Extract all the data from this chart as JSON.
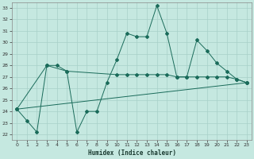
{
  "xlabel": "Humidex (Indice chaleur)",
  "bg_color": "#c5e8e0",
  "line_color": "#1a6b5a",
  "grid_color": "#a8d0c8",
  "xlim": [
    -0.5,
    23.5
  ],
  "ylim": [
    21.5,
    33.5
  ],
  "xticks": [
    0,
    1,
    2,
    3,
    4,
    5,
    6,
    7,
    8,
    9,
    10,
    11,
    12,
    13,
    14,
    15,
    16,
    17,
    18,
    19,
    20,
    21,
    22,
    23
  ],
  "yticks": [
    22,
    23,
    24,
    25,
    26,
    27,
    28,
    29,
    30,
    31,
    32,
    33
  ],
  "line1_x": [
    0,
    1,
    2,
    3,
    4,
    5,
    6,
    7,
    8,
    9,
    10,
    11,
    12,
    13,
    14,
    15,
    16,
    17,
    18,
    19,
    20,
    21,
    22,
    23
  ],
  "line1_y": [
    24.2,
    23.2,
    22.2,
    28.0,
    28.0,
    27.5,
    22.2,
    24.0,
    24.0,
    26.5,
    28.5,
    30.8,
    30.5,
    30.5,
    33.2,
    30.8,
    27.0,
    27.0,
    30.2,
    29.3,
    28.2,
    27.5,
    26.8,
    26.5
  ],
  "line2_x": [
    0,
    3,
    5,
    10,
    11,
    12,
    13,
    14,
    15,
    16,
    17,
    18,
    19,
    20,
    21,
    22,
    23
  ],
  "line2_y": [
    24.2,
    28.0,
    27.5,
    27.2,
    27.2,
    27.2,
    27.2,
    27.2,
    27.2,
    27.0,
    27.0,
    27.0,
    27.0,
    27.0,
    27.0,
    26.8,
    26.5
  ],
  "line3_x": [
    0,
    23
  ],
  "line3_y": [
    24.2,
    26.5
  ]
}
